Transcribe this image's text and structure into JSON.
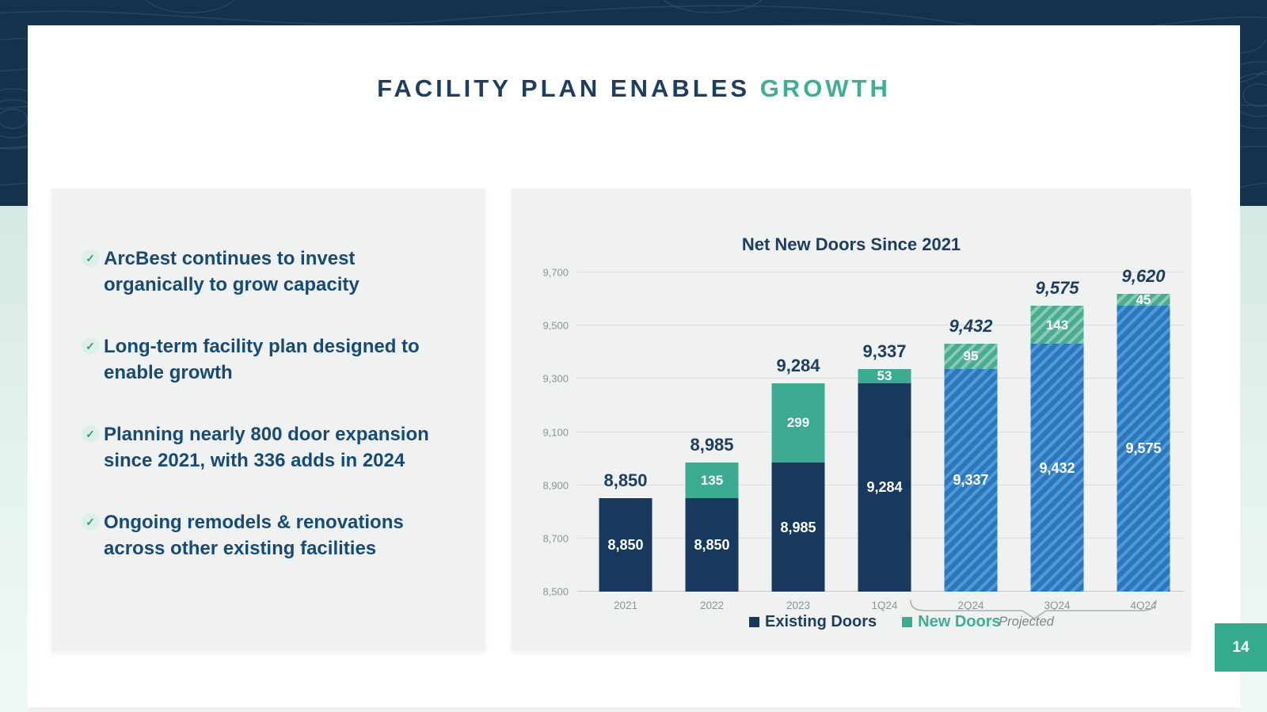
{
  "slide": {
    "title": {
      "main": "FACILITY PLAN ENABLES ",
      "accent": "GROWTH"
    },
    "page_number": "14",
    "colors": {
      "navy_band": "#14324e",
      "title_navy": "#1c3e63",
      "accent_teal": "#3fae94",
      "bullet_navy": "#174b77",
      "bar_navy": "#17395e",
      "bar_teal": "#3cab92",
      "hatch_blue": "#2878bf",
      "badge_teal": "#35aa8d"
    }
  },
  "bullets": [
    "ArcBest continues to invest organically to grow capacity",
    "Long-term facility plan designed to enable growth",
    "Planning nearly 800 door expansion since 2021, with 336 adds in 2024",
    "Ongoing remodels & renovations across other existing facilities"
  ],
  "chart_data": {
    "type": "bar",
    "stacked": true,
    "title": "Net New Doors Since 2021",
    "categories": [
      "2021",
      "2022",
      "2023",
      "1Q24",
      "2Q24",
      "3Q24",
      "4Q24"
    ],
    "series": [
      {
        "name": "Existing Doors",
        "color": "#17395e",
        "values": [
          8850,
          8850,
          8985,
          9284,
          9337,
          9432,
          9575
        ]
      },
      {
        "name": "New Doors",
        "color": "#3cab92",
        "values": [
          0,
          135,
          299,
          53,
          95,
          143,
          45
        ]
      }
    ],
    "totals": [
      8850,
      8985,
      9284,
      9337,
      9432,
      9575,
      9620
    ],
    "projected_from_index": 4,
    "projected_label": "Projected",
    "legend": [
      "Existing Doors",
      "New Doors"
    ],
    "legend_position": "bottom",
    "ylim": [
      8500,
      9700
    ],
    "ytick_step": 200,
    "grid": true
  }
}
